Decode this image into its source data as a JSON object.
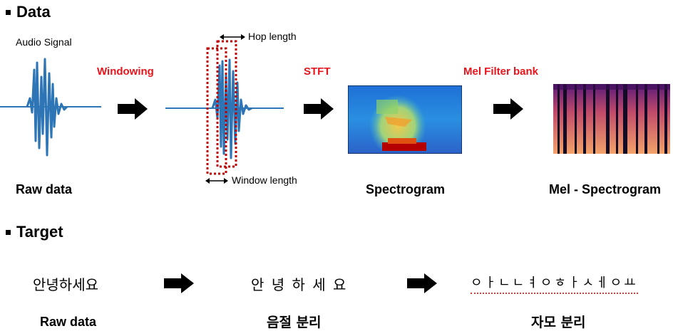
{
  "sections": {
    "data_title": "Data",
    "target_title": "Target"
  },
  "data_row": {
    "audio_signal_label": "Audio Signal",
    "windowing_label": "Windowing",
    "hop_length_label": "Hop length",
    "window_length_label": "Window length",
    "stft_label": "STFT",
    "mel_filter_label": "Mel Filter bank",
    "raw_data_caption": "Raw data",
    "spectrogram_caption": "Spectrogram",
    "mel_spectrogram_caption": "Mel - Spectrogram"
  },
  "target_row": {
    "raw_text": "안녕하세요",
    "syllables_text": "안 녕 하 세 요",
    "jamo_text": "ㅇㅏㄴㄴㅕㅇㅎㅏㅅㅔㅇㅛ",
    "raw_data_caption": "Raw data",
    "syllable_caption": "음절 분리",
    "jamo_caption": "자모 분리"
  },
  "colors": {
    "accent_red": "#e8141b",
    "wave_blue": "#2e75b6"
  }
}
